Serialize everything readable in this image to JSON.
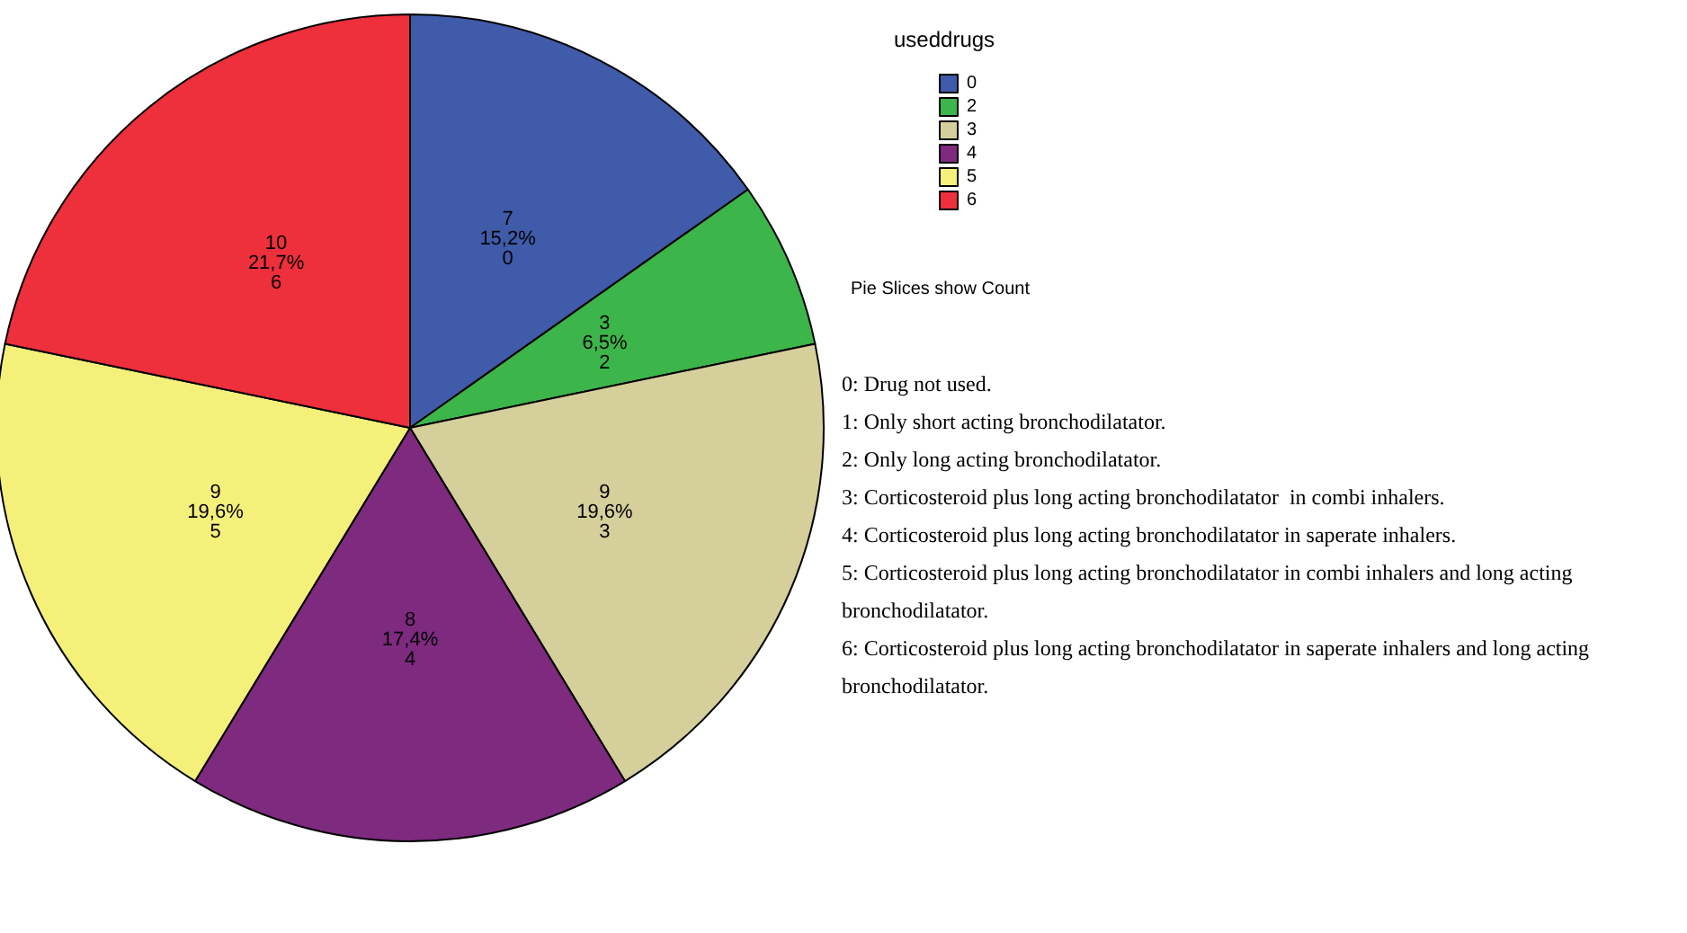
{
  "chart_data": {
    "type": "pie",
    "legend_title": "useddrugs",
    "categories": [
      "0",
      "2",
      "3",
      "4",
      "5",
      "6"
    ],
    "values": [
      7,
      3,
      9,
      8,
      9,
      10
    ],
    "colors": [
      "#3f5ba9",
      "#3cb54a",
      "#d4cf9b",
      "#7d2a7f",
      "#f5f07a",
      "#ee2f3c"
    ],
    "value_labels": [
      "7\n15,2%\n0",
      "3\n6,5%\n2",
      "9\n19,6%\n3",
      "8\n17,4%\n4",
      "9\n19,6%\n5",
      "10\n21,7%\n6"
    ],
    "legend": "top right",
    "annotations": [
      "Pie Slices show Count",
      "0: Drug not used.",
      "1: Only short acting bronchodilatator.",
      "2: Only long acting bronchodilatator.",
      "3: Corticosteroid plus long acting bronchodilatator  in combi inhalers.",
      "4: Corticosteroid plus long acting bronchodilatator in saperate inhalers.",
      "5: Corticosteroid plus long acting bronchodilatator in combi inhalers and long acting bronchodilatator.",
      "6: Corticosteroid plus long acting bronchodilatator in saperate inhalers and long acting bronchodilatator."
    ]
  }
}
